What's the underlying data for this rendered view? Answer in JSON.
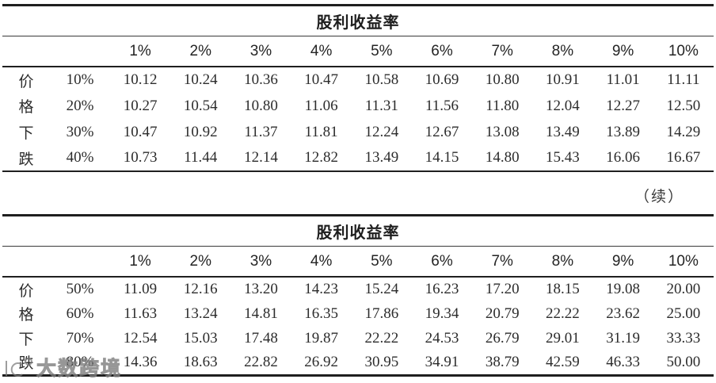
{
  "page": {
    "continued_label": "（续）",
    "watermark": {
      "brand": "大数跨境"
    }
  },
  "tables": [
    {
      "title": "股利收益率",
      "row_group_label": "价格下跌",
      "row_group_chars": [
        "价",
        "格",
        "下",
        "跌"
      ],
      "col_headers": [
        "1%",
        "2%",
        "3%",
        "4%",
        "5%",
        "6%",
        "7%",
        "8%",
        "9%",
        "10%"
      ],
      "rows": [
        {
          "label": "10%",
          "values": [
            "10.12",
            "10.24",
            "10.36",
            "10.47",
            "10.58",
            "10.69",
            "10.80",
            "10.91",
            "11.01",
            "11.11"
          ]
        },
        {
          "label": "20%",
          "values": [
            "10.27",
            "10.54",
            "10.80",
            "11.06",
            "11.31",
            "11.56",
            "11.80",
            "12.04",
            "12.27",
            "12.50"
          ]
        },
        {
          "label": "30%",
          "values": [
            "10.47",
            "10.92",
            "11.37",
            "11.81",
            "12.24",
            "12.67",
            "13.08",
            "13.49",
            "13.89",
            "14.29"
          ]
        },
        {
          "label": "40%",
          "values": [
            "10.73",
            "11.44",
            "12.14",
            "12.82",
            "13.49",
            "14.15",
            "14.80",
            "15.43",
            "16.06",
            "16.67"
          ]
        }
      ]
    },
    {
      "title": "股利收益率",
      "row_group_label": "价格下跌",
      "row_group_chars": [
        "价",
        "格",
        "下",
        "跌"
      ],
      "col_headers": [
        "1%",
        "2%",
        "3%",
        "4%",
        "5%",
        "6%",
        "7%",
        "8%",
        "9%",
        "10%"
      ],
      "rows": [
        {
          "label": "50%",
          "values": [
            "11.09",
            "12.16",
            "13.20",
            "14.23",
            "15.24",
            "16.23",
            "17.20",
            "18.15",
            "19.08",
            "20.00"
          ]
        },
        {
          "label": "60%",
          "values": [
            "11.63",
            "13.24",
            "14.81",
            "16.35",
            "17.86",
            "19.34",
            "20.79",
            "22.22",
            "23.62",
            "25.00"
          ]
        },
        {
          "label": "70%",
          "values": [
            "12.54",
            "15.03",
            "17.48",
            "19.87",
            "22.22",
            "24.53",
            "26.79",
            "29.01",
            "31.19",
            "33.33"
          ]
        },
        {
          "label": "80%",
          "values": [
            "14.36",
            "18.63",
            "22.82",
            "26.92",
            "30.95",
            "34.91",
            "38.79",
            "42.59",
            "46.33",
            "50.00"
          ]
        }
      ]
    }
  ]
}
